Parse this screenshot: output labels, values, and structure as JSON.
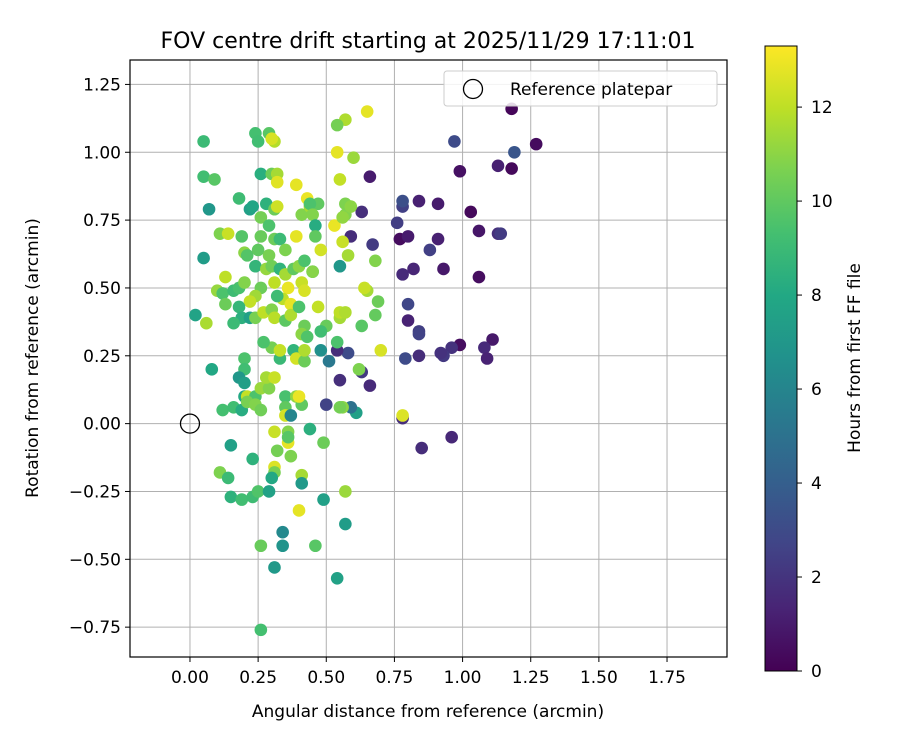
{
  "chart_data": {
    "type": "scatter",
    "title": "FOV centre drift starting at 2025/11/29 17:11:01",
    "xlabel": "Angular distance from reference (arcmin)",
    "ylabel": "Rotation from reference (arcmin)",
    "xlim": [
      -0.22,
      1.97
    ],
    "ylim": [
      -0.86,
      1.34
    ],
    "xticks": [
      0.0,
      0.25,
      0.5,
      0.75,
      1.0,
      1.25,
      1.5,
      1.75
    ],
    "xtick_labels": [
      "0.00",
      "0.25",
      "0.50",
      "0.75",
      "1.00",
      "1.25",
      "1.50",
      "1.75"
    ],
    "yticks": [
      -0.75,
      -0.5,
      -0.25,
      0.0,
      0.25,
      0.5,
      0.75,
      1.0,
      1.25
    ],
    "ytick_labels": [
      "−0.75",
      "−0.50",
      "−0.25",
      "0.00",
      "0.25",
      "0.50",
      "0.75",
      "1.00",
      "1.25"
    ],
    "grid": true,
    "legend": {
      "position": "top-right",
      "entries": [
        "Reference platepar"
      ]
    },
    "reference_point": {
      "x": 0.0,
      "y": 0.0,
      "label": "Reference platepar"
    },
    "colorbar": {
      "label": "Hours from first FF file",
      "colormap": "viridis",
      "range": [
        0,
        13.3
      ],
      "ticks": [
        0,
        2,
        4,
        6,
        8,
        10,
        12
      ],
      "tick_labels": [
        "0",
        "2",
        "4",
        "6",
        "8",
        "10",
        "12"
      ]
    },
    "points": [
      [
        1.18,
        1.16,
        0.2
      ],
      [
        1.27,
        1.03,
        0.4
      ],
      [
        1.18,
        0.94,
        0.3
      ],
      [
        1.13,
        0.95,
        1.2
      ],
      [
        1.19,
        1.0,
        3.5
      ],
      [
        0.97,
        1.04,
        3.0
      ],
      [
        0.99,
        0.93,
        0.6
      ],
      [
        0.78,
        0.8,
        2.5
      ],
      [
        0.84,
        0.82,
        1.2
      ],
      [
        0.91,
        0.81,
        1.0
      ],
      [
        1.03,
        0.78,
        0.3
      ],
      [
        0.78,
        0.82,
        3.2
      ],
      [
        0.76,
        0.74,
        2.4
      ],
      [
        1.06,
        0.71,
        0.8
      ],
      [
        1.13,
        0.7,
        1.8
      ],
      [
        1.14,
        0.7,
        2.3
      ],
      [
        0.77,
        0.68,
        0.4
      ],
      [
        0.8,
        0.69,
        1.0
      ],
      [
        0.88,
        0.64,
        2.5
      ],
      [
        0.91,
        0.68,
        1.2
      ],
      [
        0.82,
        0.57,
        1.4
      ],
      [
        0.78,
        0.55,
        1.6
      ],
      [
        0.93,
        0.57,
        0.9
      ],
      [
        1.06,
        0.54,
        0.5
      ],
      [
        0.8,
        0.44,
        2.8
      ],
      [
        0.8,
        0.38,
        1.3
      ],
      [
        0.84,
        0.34,
        2.4
      ],
      [
        0.84,
        0.33,
        2.6
      ],
      [
        1.11,
        0.31,
        0.9
      ],
      [
        0.99,
        0.29,
        0.5
      ],
      [
        1.08,
        0.28,
        1.6
      ],
      [
        0.96,
        0.28,
        1.9
      ],
      [
        0.93,
        0.25,
        2.2
      ],
      [
        0.92,
        0.26,
        1.9
      ],
      [
        0.84,
        0.25,
        1.7
      ],
      [
        0.79,
        0.24,
        3.0
      ],
      [
        1.09,
        0.24,
        1.3
      ],
      [
        0.78,
        0.02,
        1.8
      ],
      [
        0.85,
        -0.09,
        1.7
      ],
      [
        0.96,
        -0.05,
        1.5
      ],
      [
        0.66,
        0.91,
        1.0
      ],
      [
        0.63,
        0.78,
        1.8
      ],
      [
        0.59,
        0.69,
        1.7
      ],
      [
        0.67,
        0.66,
        2.3
      ],
      [
        0.66,
        0.14,
        1.6
      ],
      [
        0.63,
        0.19,
        2.2
      ],
      [
        0.5,
        0.07,
        2.6
      ],
      [
        0.58,
        0.26,
        3.0
      ],
      [
        0.54,
        0.27,
        1.7
      ],
      [
        0.55,
        0.16,
        1.8
      ],
      [
        0.61,
        0.04,
        7.5
      ],
      [
        0.59,
        0.06,
        5.0
      ],
      [
        0.56,
        0.06,
        11.0
      ],
      [
        0.55,
        0.06,
        10.5
      ],
      [
        0.48,
        0.27,
        6.6
      ],
      [
        0.51,
        0.23,
        5.3
      ],
      [
        0.55,
        0.58,
        7.0
      ],
      [
        0.54,
        0.3,
        9.5
      ],
      [
        0.05,
        1.04,
        9.0
      ],
      [
        0.24,
        1.07,
        9.3
      ],
      [
        0.25,
        1.04,
        9.2
      ],
      [
        0.29,
        1.07,
        9.8
      ],
      [
        0.31,
        1.04,
        11.8
      ],
      [
        0.3,
        1.05,
        12.5
      ],
      [
        0.05,
        0.91,
        9.2
      ],
      [
        0.09,
        0.9,
        9.8
      ],
      [
        0.07,
        0.79,
        7.0
      ],
      [
        0.18,
        0.83,
        9.1
      ],
      [
        0.26,
        0.92,
        8.3
      ],
      [
        0.3,
        0.92,
        10.3
      ],
      [
        0.32,
        0.92,
        11.5
      ],
      [
        0.32,
        0.89,
        12.7
      ],
      [
        0.39,
        0.88,
        12.8
      ],
      [
        0.43,
        0.83,
        12.9
      ],
      [
        0.22,
        0.79,
        7.5
      ],
      [
        0.23,
        0.8,
        7.8
      ],
      [
        0.28,
        0.81,
        8.5
      ],
      [
        0.31,
        0.79,
        10.3
      ],
      [
        0.32,
        0.8,
        12.3
      ],
      [
        0.41,
        0.77,
        10.8
      ],
      [
        0.44,
        0.8,
        11.5
      ],
      [
        0.47,
        0.81,
        10.0
      ],
      [
        0.44,
        0.81,
        9.5
      ],
      [
        0.45,
        0.77,
        10.8
      ],
      [
        0.26,
        0.76,
        10.5
      ],
      [
        0.29,
        0.73,
        9.5
      ],
      [
        0.11,
        0.7,
        10.7
      ],
      [
        0.14,
        0.7,
        12.2
      ],
      [
        0.19,
        0.69,
        9.7
      ],
      [
        0.26,
        0.69,
        10.2
      ],
      [
        0.31,
        0.68,
        10.3
      ],
      [
        0.33,
        0.68,
        9.0
      ],
      [
        0.39,
        0.69,
        12.8
      ],
      [
        0.46,
        0.73,
        8.2
      ],
      [
        0.46,
        0.69,
        10.0
      ],
      [
        0.48,
        0.64,
        12.4
      ],
      [
        0.53,
        0.73,
        12.9
      ],
      [
        0.56,
        0.67,
        12.2
      ],
      [
        0.58,
        0.62,
        11.5
      ],
      [
        0.57,
        0.77,
        10.8
      ],
      [
        0.57,
        0.81,
        10.7
      ],
      [
        0.59,
        0.8,
        11.0
      ],
      [
        0.56,
        0.76,
        11.1
      ],
      [
        0.55,
        0.9,
        12.1
      ],
      [
        0.6,
        0.98,
        11.3
      ],
      [
        0.54,
        1.0,
        12.8
      ],
      [
        0.57,
        1.12,
        11.7
      ],
      [
        0.54,
        1.1,
        10.5
      ],
      [
        0.65,
        1.15,
        12.8
      ],
      [
        0.05,
        0.61,
        7.3
      ],
      [
        0.13,
        0.54,
        12.0
      ],
      [
        0.1,
        0.49,
        11.2
      ],
      [
        0.12,
        0.48,
        9.5
      ],
      [
        0.16,
        0.49,
        9.1
      ],
      [
        0.18,
        0.5,
        9.4
      ],
      [
        0.2,
        0.52,
        10.8
      ],
      [
        0.2,
        0.63,
        11.0
      ],
      [
        0.21,
        0.62,
        9.7
      ],
      [
        0.24,
        0.58,
        8.7
      ],
      [
        0.25,
        0.64,
        10.0
      ],
      [
        0.29,
        0.62,
        10.6
      ],
      [
        0.28,
        0.57,
        11.2
      ],
      [
        0.3,
        0.58,
        10.4
      ],
      [
        0.35,
        0.64,
        10.7
      ],
      [
        0.33,
        0.57,
        8.6
      ],
      [
        0.31,
        0.52,
        12.0
      ],
      [
        0.35,
        0.55,
        11.5
      ],
      [
        0.38,
        0.57,
        10.0
      ],
      [
        0.4,
        0.58,
        11.0
      ],
      [
        0.42,
        0.6,
        9.5
      ],
      [
        0.41,
        0.52,
        12.2
      ],
      [
        0.45,
        0.56,
        8.7
      ],
      [
        0.45,
        0.56,
        10.9
      ],
      [
        0.42,
        0.49,
        12.5
      ],
      [
        0.36,
        0.5,
        12.9
      ],
      [
        0.34,
        0.46,
        12.0
      ],
      [
        0.37,
        0.44,
        12.8
      ],
      [
        0.32,
        0.47,
        9.1
      ],
      [
        0.26,
        0.5,
        10.3
      ],
      [
        0.24,
        0.47,
        11.4
      ],
      [
        0.22,
        0.45,
        12.1
      ],
      [
        0.18,
        0.43,
        8.8
      ],
      [
        0.13,
        0.44,
        10.3
      ],
      [
        0.19,
        0.39,
        8.4
      ],
      [
        0.16,
        0.37,
        9.0
      ],
      [
        0.22,
        0.39,
        7.5
      ],
      [
        0.24,
        0.39,
        10.6
      ],
      [
        0.27,
        0.41,
        12.0
      ],
      [
        0.3,
        0.42,
        10.8
      ],
      [
        0.31,
        0.39,
        11.9
      ],
      [
        0.35,
        0.38,
        9.9
      ],
      [
        0.37,
        0.4,
        11.7
      ],
      [
        0.4,
        0.43,
        9.5
      ],
      [
        0.42,
        0.36,
        10.3
      ],
      [
        0.47,
        0.43,
        12.1
      ],
      [
        0.5,
        0.36,
        10.2
      ],
      [
        0.48,
        0.34,
        9.2
      ],
      [
        0.55,
        0.39,
        11.5
      ],
      [
        0.55,
        0.41,
        12.0
      ],
      [
        0.57,
        0.41,
        11.7
      ],
      [
        0.63,
        0.36,
        9.8
      ],
      [
        0.68,
        0.4,
        10.1
      ],
      [
        0.69,
        0.45,
        10.3
      ],
      [
        0.65,
        0.49,
        11.5
      ],
      [
        0.64,
        0.5,
        12.2
      ],
      [
        0.68,
        0.6,
        10.8
      ],
      [
        0.7,
        0.27,
        12.5
      ],
      [
        0.62,
        0.2,
        10.7
      ],
      [
        0.06,
        0.37,
        11.6
      ],
      [
        0.02,
        0.4,
        7.7
      ],
      [
        0.08,
        0.2,
        7.9
      ],
      [
        0.2,
        0.24,
        9.5
      ],
      [
        0.2,
        0.2,
        9.2
      ],
      [
        0.18,
        0.17,
        7.0
      ],
      [
        0.2,
        0.15,
        7.4
      ],
      [
        0.2,
        0.1,
        8.0
      ],
      [
        0.21,
        0.1,
        12.1
      ],
      [
        0.24,
        0.1,
        9.5
      ],
      [
        0.26,
        0.13,
        11.3
      ],
      [
        0.29,
        0.13,
        10.8
      ],
      [
        0.28,
        0.17,
        11.5
      ],
      [
        0.31,
        0.17,
        12.2
      ],
      [
        0.33,
        0.24,
        8.9
      ],
      [
        0.3,
        0.28,
        10.5
      ],
      [
        0.33,
        0.27,
        12.1
      ],
      [
        0.27,
        0.3,
        9.5
      ],
      [
        0.38,
        0.27,
        8.6
      ],
      [
        0.39,
        0.24,
        12.4
      ],
      [
        0.42,
        0.23,
        10.3
      ],
      [
        0.42,
        0.27,
        11.7
      ],
      [
        0.41,
        0.33,
        11.0
      ],
      [
        0.43,
        0.32,
        9.6
      ],
      [
        0.35,
        0.1,
        9.4
      ],
      [
        0.35,
        0.06,
        10.0
      ],
      [
        0.35,
        0.03,
        12.4
      ],
      [
        0.37,
        0.03,
        6.0
      ],
      [
        0.39,
        0.1,
        11.1
      ],
      [
        0.41,
        0.07,
        10.0
      ],
      [
        0.4,
        0.1,
        12.9
      ],
      [
        0.36,
        -0.03,
        10.8
      ],
      [
        0.31,
        -0.03,
        12.2
      ],
      [
        0.36,
        -0.07,
        12.8
      ],
      [
        0.36,
        -0.05,
        9.8
      ],
      [
        0.32,
        -0.1,
        10.5
      ],
      [
        0.37,
        -0.12,
        10.7
      ],
      [
        0.31,
        -0.16,
        12.6
      ],
      [
        0.31,
        -0.18,
        10.6
      ],
      [
        0.41,
        -0.19,
        11.5
      ],
      [
        0.41,
        -0.22,
        7.1
      ],
      [
        0.44,
        -0.02,
        8.4
      ],
      [
        0.49,
        -0.07,
        10.3
      ],
      [
        0.12,
        0.05,
        9.3
      ],
      [
        0.16,
        0.06,
        9.2
      ],
      [
        0.19,
        0.05,
        8.2
      ],
      [
        0.21,
        0.08,
        10.6
      ],
      [
        0.24,
        0.07,
        10.8
      ],
      [
        0.26,
        0.05,
        10.4
      ],
      [
        0.15,
        -0.08,
        7.5
      ],
      [
        0.23,
        -0.13,
        8.5
      ],
      [
        0.11,
        -0.18,
        10.7
      ],
      [
        0.14,
        -0.2,
        9.0
      ],
      [
        0.15,
        -0.27,
        8.5
      ],
      [
        0.19,
        -0.28,
        9.2
      ],
      [
        0.23,
        -0.27,
        9.1
      ],
      [
        0.25,
        -0.25,
        9.6
      ],
      [
        0.29,
        -0.25,
        7.6
      ],
      [
        0.3,
        -0.2,
        8.0
      ],
      [
        0.49,
        -0.28,
        7.5
      ],
      [
        0.4,
        -0.32,
        12.8
      ],
      [
        0.34,
        -0.4,
        6.2
      ],
      [
        0.26,
        -0.45,
        10.2
      ],
      [
        0.34,
        -0.45,
        6.8
      ],
      [
        0.46,
        -0.45,
        9.8
      ],
      [
        0.57,
        -0.37,
        7.3
      ],
      [
        0.57,
        -0.25,
        11.3
      ],
      [
        0.31,
        -0.53,
        7.1
      ],
      [
        0.54,
        -0.57,
        7.6
      ],
      [
        0.26,
        -0.76,
        9.3
      ],
      [
        0.78,
        0.03,
        12.6
      ]
    ]
  }
}
